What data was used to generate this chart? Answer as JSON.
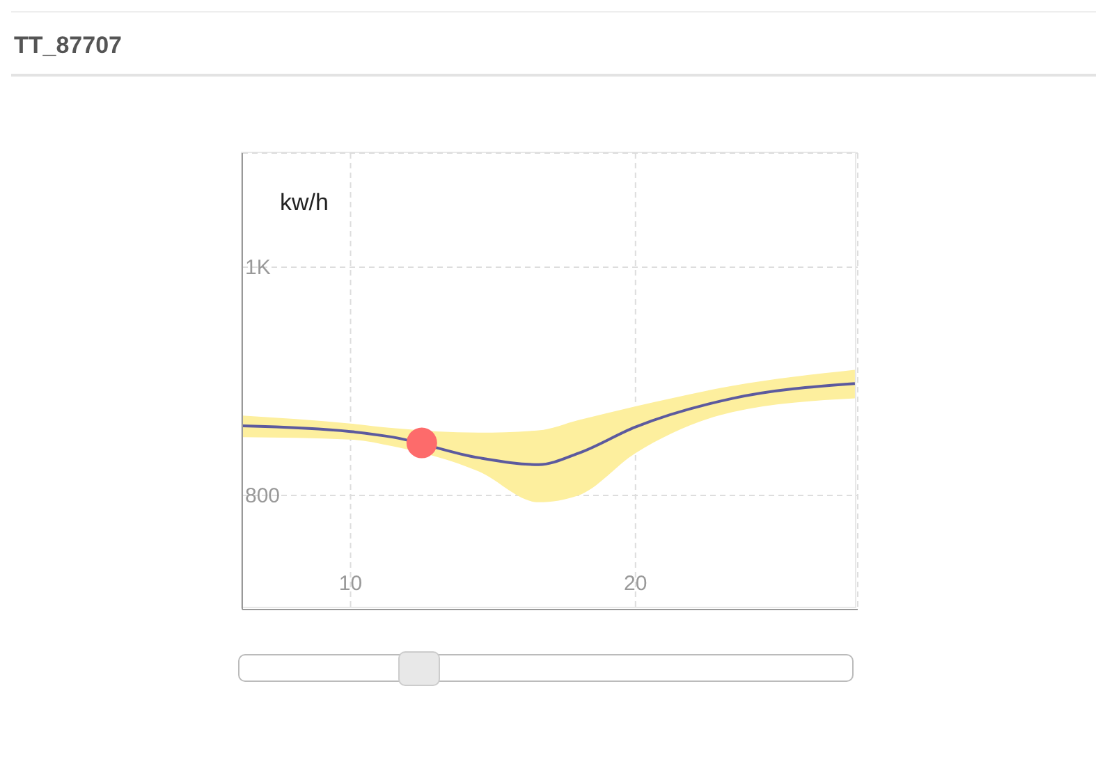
{
  "chart_data": {
    "type": "line",
    "title": "TT_87707",
    "ylabel": "kw/h",
    "xlim": [
      6.2,
      27.8
    ],
    "xticks": [
      10,
      20
    ],
    "ylim": [
      700,
      1100
    ],
    "yticks": [
      {
        "value": 800,
        "label": "800"
      },
      {
        "value": 1000,
        "label": "1K"
      }
    ],
    "grid": true,
    "series": [
      {
        "color": "#5c5a9e",
        "marker": "none",
        "x": [
          6.2,
          10,
          11.5,
          14.5,
          16.6,
          18,
          20,
          23.4,
          27.7
        ],
        "values": [
          861,
          856,
          851,
          833,
          827,
          837,
          860,
          885,
          898
        ],
        "lower": [
          851,
          849,
          843,
          821,
          794,
          800,
          837,
          873,
          885
        ],
        "upper": [
          870,
          863,
          859,
          855,
          857,
          866,
          878,
          896,
          910
        ]
      },
      {
        "type": "scatter",
        "color": "#fd6b6b",
        "marker": "circle",
        "x": [
          12.5
        ],
        "values": [
          846
        ]
      }
    ]
  }
}
